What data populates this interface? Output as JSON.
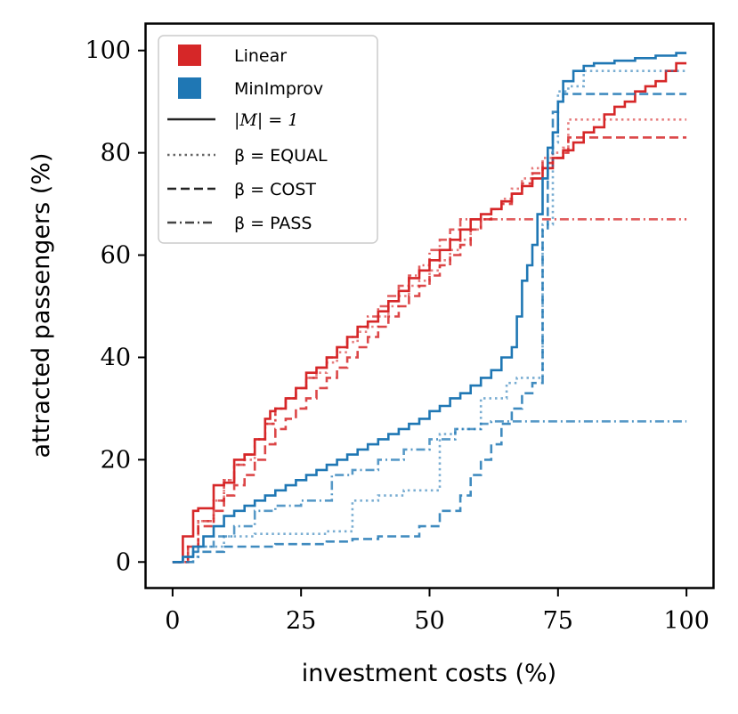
{
  "chart_data": {
    "type": "line",
    "step": true,
    "xlabel": "investment costs (%)",
    "ylabel": "attracted passengers (%)",
    "xlim": [
      -5,
      105
    ],
    "ylim": [
      -5,
      105
    ],
    "xticks": [
      0,
      25,
      50,
      75,
      100
    ],
    "yticks": [
      0,
      20,
      40,
      60,
      80,
      100
    ],
    "grid": false,
    "legend_position": "top-left",
    "colors": {
      "Linear": "#d62728",
      "MinImprov": "#1f77b4",
      "legend_line": "#222222"
    },
    "legend": {
      "colors": [
        {
          "label": "Linear",
          "color": "#d62728"
        },
        {
          "label": "MinImprov",
          "color": "#1f77b4"
        }
      ],
      "styles": [
        {
          "label": "|M| = 1",
          "style": "solid"
        },
        {
          "label": "β = EQUAL",
          "style": "dotted"
        },
        {
          "label": "β = COST",
          "style": "dashed"
        },
        {
          "label": "β = PASS",
          "style": "dashdot"
        }
      ]
    },
    "series": [
      {
        "name": "Linear, |M| = 1",
        "method": "Linear",
        "style": "solid",
        "x": [
          0,
          2,
          4,
          5,
          8,
          10,
          12,
          14,
          16,
          18,
          19,
          20,
          22,
          24,
          26,
          28,
          30,
          32,
          34,
          36,
          38,
          40,
          42,
          44,
          46,
          48,
          50,
          52,
          54,
          56,
          58,
          60,
          62,
          64,
          66,
          68,
          70,
          72,
          74,
          76,
          78,
          80,
          82,
          84,
          86,
          88,
          90,
          92,
          94,
          96,
          98,
          100
        ],
        "y": [
          0,
          5,
          10,
          10.5,
          15,
          15.5,
          20,
          21,
          24,
          28,
          29.5,
          30,
          32,
          34,
          37,
          38,
          40,
          42,
          44,
          46,
          47,
          49,
          51,
          53,
          55.5,
          57,
          59,
          61,
          63,
          65,
          67,
          68,
          69,
          70.5,
          72,
          73.5,
          75,
          77,
          79,
          80.5,
          82,
          84,
          85,
          87.5,
          89,
          90,
          92,
          93,
          94,
          96,
          97.5,
          97.5
        ]
      },
      {
        "name": "Linear, β = EQUAL",
        "method": "Linear",
        "style": "dotted",
        "x": [
          0,
          3,
          5,
          8,
          10,
          12,
          14,
          16,
          18,
          20,
          22,
          24,
          26,
          28,
          30,
          32,
          34,
          36,
          38,
          40,
          42,
          44,
          46,
          48,
          50,
          52,
          54,
          56,
          58,
          60,
          62,
          64,
          66,
          68,
          70,
          72,
          74,
          76,
          77,
          100
        ],
        "y": [
          0,
          3,
          8,
          12,
          16,
          19,
          20,
          24,
          27,
          30,
          32,
          34,
          36,
          37,
          39,
          41,
          43,
          45,
          46,
          48,
          50,
          52,
          54,
          55,
          57,
          59,
          61,
          63,
          65,
          67,
          69,
          71,
          73,
          75,
          77,
          79,
          80,
          81,
          86.5,
          86.5
        ]
      },
      {
        "name": "Linear, β = COST",
        "method": "Linear",
        "style": "dashed",
        "x": [
          0,
          3,
          5,
          8,
          10,
          12,
          14,
          16,
          18,
          20,
          22,
          24,
          26,
          28,
          30,
          32,
          34,
          36,
          38,
          40,
          42,
          44,
          46,
          48,
          50,
          52,
          54,
          56,
          58,
          60,
          62,
          64,
          66,
          68,
          70,
          72,
          74,
          76,
          77,
          100
        ],
        "y": [
          0,
          3,
          7,
          10,
          13,
          15,
          17,
          20,
          23,
          26,
          28,
          30,
          32,
          34,
          36,
          38,
          40,
          42,
          44,
          46,
          48,
          50,
          52,
          54,
          56,
          58,
          60,
          62,
          65,
          67,
          69,
          70,
          72,
          74,
          76,
          78,
          79,
          80,
          83,
          83
        ]
      },
      {
        "name": "Linear, β = PASS",
        "method": "Linear",
        "style": "dashdot",
        "x": [
          0,
          3,
          5,
          8,
          10,
          12,
          14,
          16,
          18,
          20,
          22,
          24,
          26,
          28,
          30,
          32,
          34,
          36,
          38,
          40,
          42,
          44,
          46,
          48,
          50,
          52,
          54,
          56,
          100
        ],
        "y": [
          0,
          3,
          8,
          12,
          16,
          19,
          21,
          24,
          27,
          30,
          32,
          34,
          36,
          38,
          40,
          42,
          44,
          46,
          48,
          50,
          52,
          54,
          56,
          58,
          61,
          63,
          65,
          67,
          67
        ]
      },
      {
        "name": "MinImprov, |M| = 1",
        "method": "MinImprov",
        "style": "solid",
        "x": [
          0,
          2,
          4,
          6,
          8,
          10,
          12,
          14,
          16,
          18,
          20,
          22,
          24,
          26,
          28,
          30,
          32,
          34,
          36,
          38,
          40,
          42,
          44,
          46,
          48,
          50,
          52,
          54,
          56,
          58,
          60,
          62,
          64,
          66,
          67,
          68,
          69,
          70,
          71,
          72,
          73,
          74,
          75,
          76,
          78,
          80,
          82,
          84,
          86,
          88,
          90,
          92,
          94,
          96,
          98,
          100
        ],
        "y": [
          0,
          1,
          3,
          5,
          7,
          9,
          10,
          11,
          12,
          13,
          14,
          15,
          16,
          17,
          18,
          19,
          20,
          21,
          22,
          23,
          24,
          25,
          26,
          27,
          28,
          29.5,
          30.5,
          32,
          33,
          34.5,
          36,
          37.5,
          40,
          42,
          48,
          55,
          58,
          62,
          68,
          75,
          81,
          84,
          90,
          94,
          96,
          97,
          97.5,
          97.5,
          98,
          98,
          98.5,
          98.5,
          99,
          99,
          99.5,
          99.5
        ]
      },
      {
        "name": "MinImprov, β = EQUAL",
        "method": "MinImprov",
        "style": "dotted",
        "x": [
          0,
          2,
          5,
          10,
          16,
          20,
          30,
          35,
          40,
          45,
          52,
          55,
          60,
          65,
          67,
          70,
          72,
          74,
          75,
          77,
          80,
          100
        ],
        "y": [
          0,
          1,
          3,
          5,
          5.5,
          5.5,
          6,
          12,
          13,
          14,
          25,
          26,
          32,
          35,
          36,
          36,
          66,
          82,
          92,
          93,
          96,
          96
        ]
      },
      {
        "name": "MinImprov, β = COST",
        "method": "MinImprov",
        "style": "dashed",
        "x": [
          0,
          4,
          10,
          20,
          30,
          35,
          40,
          48,
          52,
          56,
          58,
          60,
          62,
          64,
          66,
          68,
          70,
          72,
          73,
          74,
          75,
          76,
          100
        ],
        "y": [
          0,
          2,
          3,
          3.5,
          4,
          4.5,
          5,
          7,
          10,
          13,
          17,
          20,
          23,
          27,
          30,
          33,
          35,
          65,
          80,
          88,
          90,
          91.5,
          91.5
        ]
      },
      {
        "name": "MinImprov, β = PASS",
        "method": "MinImprov",
        "style": "dashdot",
        "x": [
          0,
          2,
          5,
          8,
          12,
          16,
          20,
          25,
          31,
          35,
          40,
          45,
          50,
          55,
          60,
          62,
          100
        ],
        "y": [
          0,
          1,
          3,
          5,
          7,
          10,
          11,
          12,
          17,
          18,
          20,
          22,
          24,
          26,
          27,
          27.5,
          27.5
        ]
      }
    ]
  }
}
